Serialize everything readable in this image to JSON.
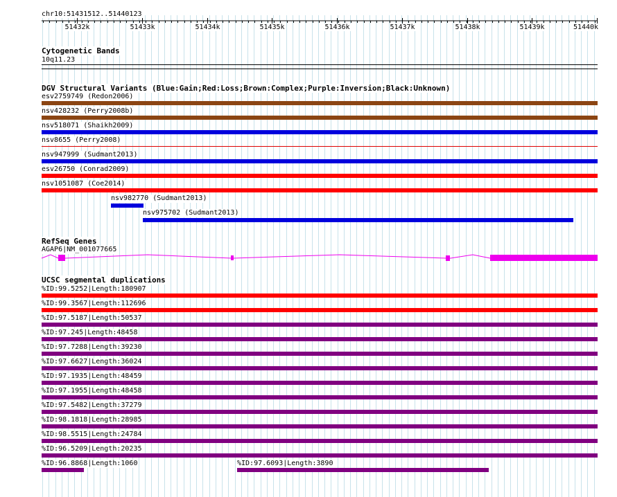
{
  "ruler": {
    "coordinates": "chr10:51431512..51440123",
    "ticks": [
      "51432k",
      "51433k",
      "51434k",
      "51435k",
      "51436k",
      "51437k",
      "51438k",
      "51439k",
      "51440k"
    ]
  },
  "cytoband": {
    "title": "Cytogenetic Bands",
    "band": "10q11.23"
  },
  "dgv": {
    "title": "DGV Structural Variants (Blue:Gain;Red:Loss;Brown:Complex;Purple:Inversion;Black:Unknown)",
    "variants": [
      {
        "label": "esv2759749 (Redon2006)",
        "color": "#8b4513"
      },
      {
        "label": "nsv428232 (Perry2008b)",
        "color": "#8b4513"
      },
      {
        "label": "nsv518071 (Shaikh2009)",
        "color": "#0000dd"
      },
      {
        "label": "nsv8655 (Perry2008)",
        "color": "#dd0000"
      },
      {
        "label": "nsv947999 (Sudmant2013)",
        "color": "#0000dd"
      },
      {
        "label": "esv26750 (Conrad2009)",
        "color": "#ff0000"
      },
      {
        "label": "nsv1051087 (Coe2014)",
        "color": "#ff0000"
      },
      {
        "label": "nsv982770 (Sudmant2013)",
        "color": "#0000dd"
      },
      {
        "label": "nsv975702 (Sudmant2013)",
        "color": "#0000dd"
      }
    ]
  },
  "refseq": {
    "title": "RefSeq Genes",
    "gene_label": "AGAP6|NM_001077665",
    "color": "#ee00ee"
  },
  "segdup": {
    "title": "UCSC segmental duplications",
    "items": [
      {
        "label": "%ID:99.5252|Length:180907",
        "color": "#ff0000"
      },
      {
        "label": "%ID:99.3567|Length:112696",
        "color": "#ff0000"
      },
      {
        "label": "%ID:97.5187|Length:50537",
        "color": "#800080"
      },
      {
        "label": "%ID:97.245|Length:48458",
        "color": "#800080"
      },
      {
        "label": "%ID:97.7288|Length:39230",
        "color": "#800080"
      },
      {
        "label": "%ID:97.6627|Length:36024",
        "color": "#800080"
      },
      {
        "label": "%ID:97.1935|Length:48459",
        "color": "#800080"
      },
      {
        "label": "%ID:97.1955|Length:48458",
        "color": "#800080"
      },
      {
        "label": "%ID:97.5482|Length:37279",
        "color": "#800080"
      },
      {
        "label": "%ID:98.1818|Length:28985",
        "color": "#800080"
      },
      {
        "label": "%ID:98.5515|Length:24784",
        "color": "#800080"
      },
      {
        "label": "%ID:96.5209|Length:20235",
        "color": "#800080"
      },
      {
        "label": "%ID:96.8868|Length:1060",
        "color": "#800080"
      },
      {
        "label": "%ID:97.6093|Length:3890",
        "color": "#800080"
      }
    ]
  }
}
